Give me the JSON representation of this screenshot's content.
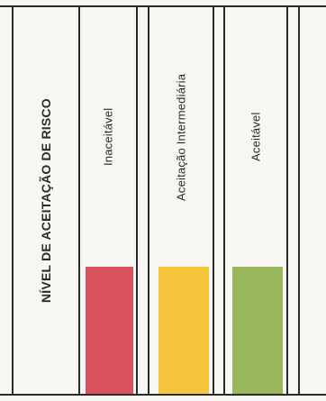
{
  "header": {
    "label": "NÍVEL DE ACEITAÇÃO DE RISCO"
  },
  "levels": [
    {
      "label": "Inaceitável",
      "color": "#d9505f"
    },
    {
      "label": "Aceitação Intermediária",
      "color": "#f4c53a"
    },
    {
      "label": "Aceitável",
      "color": "#97b75a"
    }
  ]
}
